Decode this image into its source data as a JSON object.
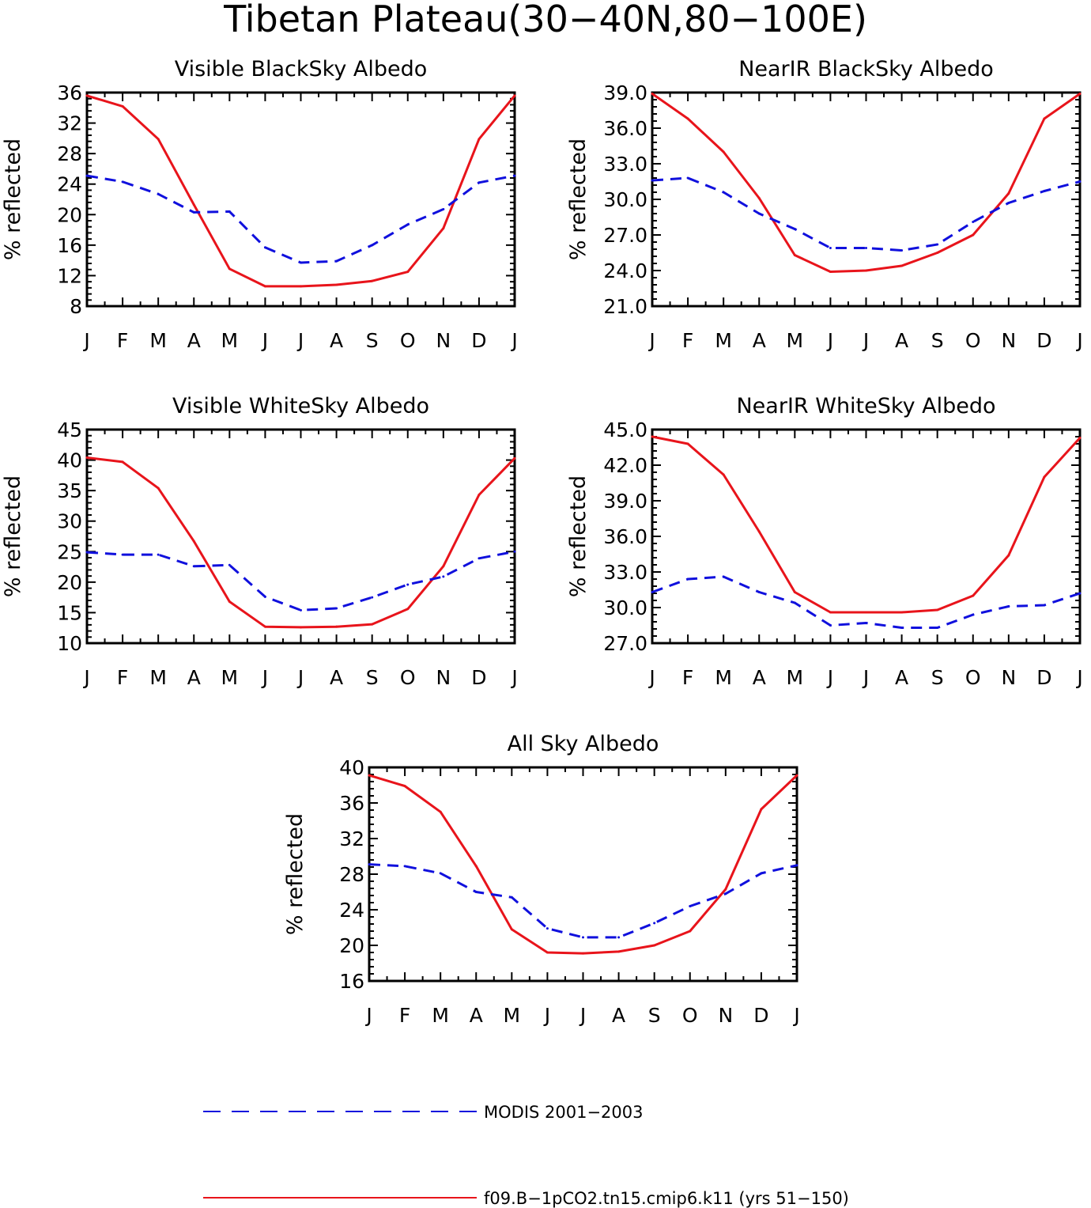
{
  "figure": {
    "title": "Tibetan Plateau(30−40N,80−100E)",
    "colors": {
      "model": "#e8141b",
      "obs": "#1010dd"
    }
  },
  "legend": [
    {
      "label": "MODIS 2001−2003",
      "style": "dashed",
      "color": "#1010dd"
    },
    {
      "label": "f09.B−1pCO2.tn15.cmip6.k11 (yrs 51−150)",
      "style": "solid",
      "color": "#e8141b"
    }
  ],
  "chart_data": [
    {
      "type": "line",
      "title": "Visible BlackSky Albedo",
      "ylabel": "% reflected",
      "categories": [
        "J",
        "F",
        "M",
        "A",
        "M",
        "J",
        "J",
        "A",
        "S",
        "O",
        "N",
        "D",
        "J"
      ],
      "ylim": [
        8,
        36
      ],
      "yticks": [
        "8",
        "12",
        "16",
        "20",
        "24",
        "28",
        "32",
        "36"
      ],
      "series": [
        {
          "name": "f09.B−1pCO2.tn15.cmip6.k11 (yrs 51−150)",
          "style": "solid",
          "values": [
            35.6,
            34.2,
            29.9,
            21.3,
            12.9,
            10.6,
            10.6,
            10.8,
            11.3,
            12.5,
            18.2,
            29.9,
            35.6
          ]
        },
        {
          "name": "MODIS 2001−2003",
          "style": "dashed",
          "values": [
            25.1,
            24.3,
            22.7,
            20.3,
            20.4,
            15.7,
            13.7,
            13.9,
            16.0,
            18.7,
            20.7,
            24.2,
            25.1
          ]
        }
      ]
    },
    {
      "type": "line",
      "title": "NearIR BlackSky Albedo",
      "ylabel": "% reflected",
      "categories": [
        "J",
        "F",
        "M",
        "A",
        "M",
        "J",
        "J",
        "A",
        "S",
        "O",
        "N",
        "D",
        "J"
      ],
      "ylim": [
        21,
        39
      ],
      "yticks": [
        "21.0",
        "24.0",
        "27.0",
        "30.0",
        "33.0",
        "36.0",
        "39.0"
      ],
      "series": [
        {
          "name": "f09.B−1pCO2.tn15.cmip6.k11 (yrs 51−150)",
          "style": "solid",
          "values": [
            38.9,
            36.8,
            34.0,
            30.1,
            25.3,
            23.9,
            24.0,
            24.4,
            25.5,
            27.0,
            30.5,
            36.8,
            38.9
          ]
        },
        {
          "name": "MODIS 2001−2003",
          "style": "dashed",
          "values": [
            31.6,
            31.8,
            30.6,
            28.8,
            27.5,
            25.9,
            25.9,
            25.7,
            26.2,
            28.1,
            29.7,
            30.7,
            31.5
          ]
        }
      ]
    },
    {
      "type": "line",
      "title": "Visible WhiteSky Albedo",
      "ylabel": "% reflected",
      "categories": [
        "J",
        "F",
        "M",
        "A",
        "M",
        "J",
        "J",
        "A",
        "S",
        "O",
        "N",
        "D",
        "J"
      ],
      "ylim": [
        10,
        45
      ],
      "yticks": [
        "10",
        "15",
        "20",
        "25",
        "30",
        "35",
        "40",
        "45"
      ],
      "series": [
        {
          "name": "f09.B−1pCO2.tn15.cmip6.k11 (yrs 51−150)",
          "style": "solid",
          "values": [
            40.4,
            39.7,
            35.4,
            26.7,
            16.8,
            12.7,
            12.6,
            12.7,
            13.1,
            15.6,
            22.6,
            34.3,
            40.3
          ]
        },
        {
          "name": "MODIS 2001−2003",
          "style": "dashed",
          "values": [
            24.9,
            24.5,
            24.5,
            22.6,
            22.8,
            17.6,
            15.4,
            15.7,
            17.5,
            19.6,
            20.9,
            23.9,
            25.0
          ]
        }
      ]
    },
    {
      "type": "line",
      "title": "NearIR WhiteSky Albedo",
      "ylabel": "% reflected",
      "categories": [
        "J",
        "F",
        "M",
        "A",
        "M",
        "J",
        "J",
        "A",
        "S",
        "O",
        "N",
        "D",
        "J"
      ],
      "ylim": [
        27,
        45
      ],
      "yticks": [
        "27.0",
        "30.0",
        "33.0",
        "36.0",
        "39.0",
        "42.0",
        "45.0"
      ],
      "series": [
        {
          "name": "f09.B−1pCO2.tn15.cmip6.k11 (yrs 51−150)",
          "style": "solid",
          "values": [
            44.4,
            43.8,
            41.2,
            36.4,
            31.3,
            29.6,
            29.6,
            29.6,
            29.8,
            31.0,
            34.4,
            41.0,
            44.3
          ]
        },
        {
          "name": "MODIS 2001−2003",
          "style": "dashed",
          "values": [
            31.3,
            32.4,
            32.6,
            31.3,
            30.4,
            28.5,
            28.7,
            28.3,
            28.3,
            29.4,
            30.1,
            30.2,
            31.2
          ]
        }
      ]
    },
    {
      "type": "line",
      "title": "All Sky Albedo",
      "ylabel": "% reflected",
      "categories": [
        "J",
        "F",
        "M",
        "A",
        "M",
        "J",
        "J",
        "A",
        "S",
        "O",
        "N",
        "D",
        "J"
      ],
      "ylim": [
        16,
        40
      ],
      "yticks": [
        "16",
        "20",
        "24",
        "28",
        "32",
        "36",
        "40"
      ],
      "series": [
        {
          "name": "f09.B−1pCO2.tn15.cmip6.k11 (yrs 51−150)",
          "style": "solid",
          "values": [
            39.1,
            37.9,
            35.0,
            28.9,
            21.8,
            19.2,
            19.1,
            19.3,
            20.0,
            21.6,
            26.3,
            35.3,
            39.1
          ]
        },
        {
          "name": "MODIS 2001−2003",
          "style": "dashed",
          "values": [
            29.1,
            28.9,
            28.1,
            26.0,
            25.4,
            21.9,
            20.9,
            20.9,
            22.5,
            24.4,
            25.8,
            28.1,
            29.0
          ]
        }
      ]
    }
  ]
}
